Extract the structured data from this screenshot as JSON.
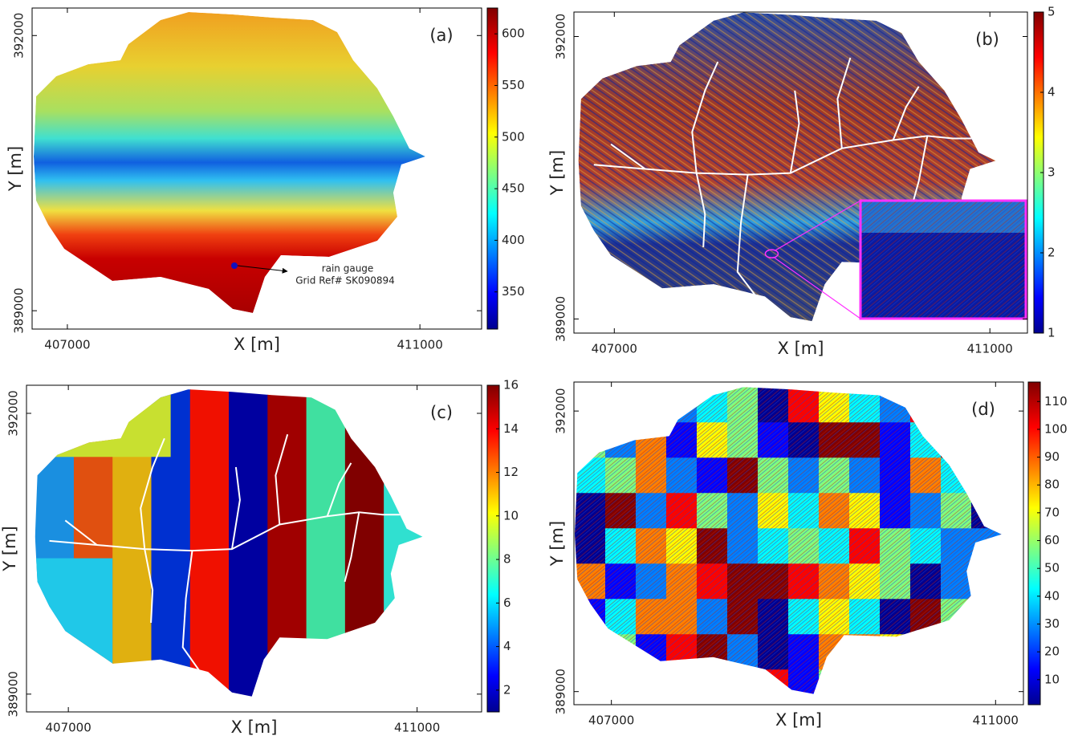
{
  "chart_data": [
    {
      "type": "map",
      "panel_label": "(a)",
      "xlabel": "X [m]",
      "ylabel": "Y [m]",
      "xlim": [
        406600,
        411700
      ],
      "ylim": [
        388800,
        392300
      ],
      "xticks": [
        407000,
        411000
      ],
      "yticks": [
        389000,
        392000
      ],
      "fill": "elevation",
      "streams": false,
      "colorbar": {
        "colormap": "jet",
        "clim": [
          314,
          625
        ],
        "ticks": [
          350,
          400,
          450,
          500,
          550,
          600
        ]
      },
      "annotations": [
        "rain gauge",
        "Grid Ref# SK090894"
      ]
    },
    {
      "type": "map",
      "panel_label": "(b)",
      "xlabel": "X [m]",
      "ylabel": "Y [m]",
      "xlim": [
        406570,
        411400
      ],
      "ylim": [
        388850,
        392260
      ],
      "xticks": [
        407000,
        411000
      ],
      "yticks": [
        389000,
        392000
      ],
      "fill": "texture",
      "streams": true,
      "inset": true,
      "colorbar": {
        "colormap": "jet",
        "clim": [
          1,
          5
        ],
        "ticks": [
          1,
          2,
          3,
          4,
          5
        ]
      }
    },
    {
      "type": "map",
      "panel_label": "(c)",
      "xlabel": "X [m]",
      "ylabel": "Y [m]",
      "xlim": [
        406520,
        411740
      ],
      "ylim": [
        388810,
        392300
      ],
      "xticks": [
        407000,
        411000
      ],
      "yticks": [
        389000,
        392000
      ],
      "fill": "regions",
      "streams": true,
      "colorbar": {
        "colormap": "jet",
        "clim": [
          1,
          16
        ],
        "ticks": [
          2,
          4,
          6,
          8,
          10,
          12,
          14,
          16
        ]
      }
    },
    {
      "type": "map",
      "panel_label": "(d)",
      "xlabel": "X [m]",
      "ylabel": "Y [m]",
      "xlim": [
        406610,
        411290
      ],
      "ylim": [
        388860,
        392310
      ],
      "xticks": [
        407000,
        411000
      ],
      "yticks": [
        389000,
        392000
      ],
      "fill": "patches",
      "streams": false,
      "colorbar": {
        "colormap": "jet",
        "clim": [
          1,
          117
        ],
        "ticks": [
          10,
          20,
          30,
          40,
          50,
          60,
          70,
          80,
          90,
          100,
          110
        ]
      }
    }
  ]
}
